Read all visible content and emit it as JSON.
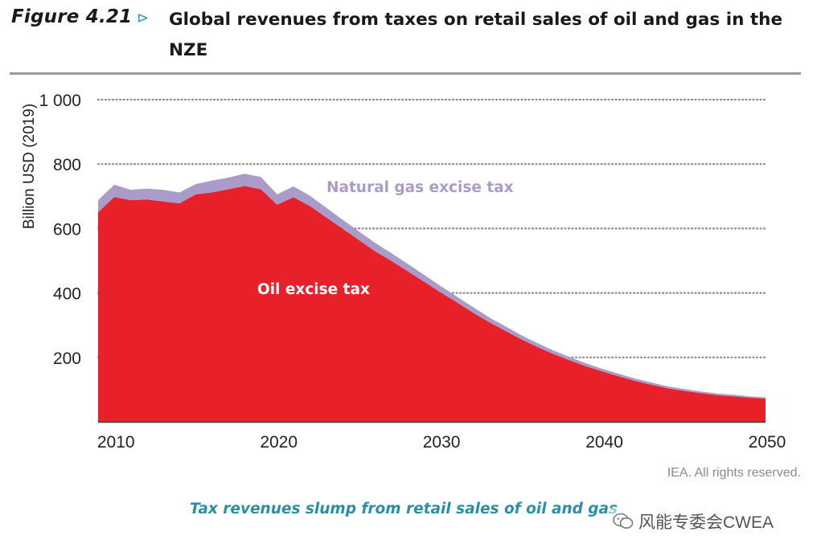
{
  "header": {
    "figure_label": "Figure 4.21",
    "arrow": "⊳",
    "title": "Global revenues from taxes on retail sales of oil and gas in the NZE"
  },
  "chart_data": {
    "type": "area",
    "stacked": true,
    "title": "Global revenues from taxes on retail sales of oil and gas in the NZE",
    "xlabel": "",
    "ylabel": "Billion USD (2019)",
    "xlim": [
      2009,
      2050
    ],
    "ylim": [
      0,
      1000
    ],
    "yticks": [
      200,
      400,
      600,
      800,
      1000
    ],
    "ytick_labels": [
      "200",
      "400",
      "600",
      "800",
      "1 000"
    ],
    "xticks": [
      2010,
      2020,
      2030,
      2040,
      2050
    ],
    "xtick_labels": [
      "2010",
      "2020",
      "2030",
      "2040",
      "2050"
    ],
    "grid": "horizontal-dotted",
    "x": [
      2009,
      2010,
      2011,
      2012,
      2013,
      2014,
      2015,
      2016,
      2017,
      2018,
      2019,
      2020,
      2021,
      2022,
      2023,
      2024,
      2025,
      2026,
      2027,
      2028,
      2029,
      2030,
      2031,
      2032,
      2033,
      2034,
      2035,
      2036,
      2037,
      2038,
      2039,
      2040,
      2041,
      2042,
      2043,
      2044,
      2045,
      2046,
      2047,
      2048,
      2049,
      2050
    ],
    "series": [
      {
        "name": "Oil excise tax",
        "color": "#e8202a",
        "values": [
          650,
          698,
          688,
          690,
          684,
          678,
          706,
          712,
          722,
          732,
          722,
          674,
          697,
          670,
          635,
          600,
          565,
          530,
          500,
          468,
          436,
          403,
          372,
          340,
          310,
          283,
          256,
          232,
          210,
          190,
          172,
          156,
          141,
          127,
          115,
          104,
          96,
          89,
          83,
          79,
          75,
          72
        ]
      },
      {
        "name": "Natural gas excise tax",
        "color": "#ab9bc9",
        "values": [
          38,
          38,
          32,
          34,
          36,
          34,
          32,
          37,
          36,
          38,
          38,
          32,
          34,
          32,
          30,
          28,
          27,
          26,
          24,
          23,
          21,
          20,
          18,
          17,
          15,
          14,
          13,
          12,
          11,
          10,
          9,
          8,
          8,
          7,
          7,
          6,
          6,
          5,
          5,
          5,
          4,
          4
        ]
      }
    ],
    "annotations": [
      {
        "text": "Natural gas excise tax",
        "color": "#ab9bc9"
      },
      {
        "text": "Oil excise tax",
        "color": "#ffffff"
      }
    ]
  },
  "credit": "IEA. All rights reserved.",
  "caption": "Tax revenues slump from retail sales of oil and gas",
  "watermark": "风能专委会CWEA"
}
